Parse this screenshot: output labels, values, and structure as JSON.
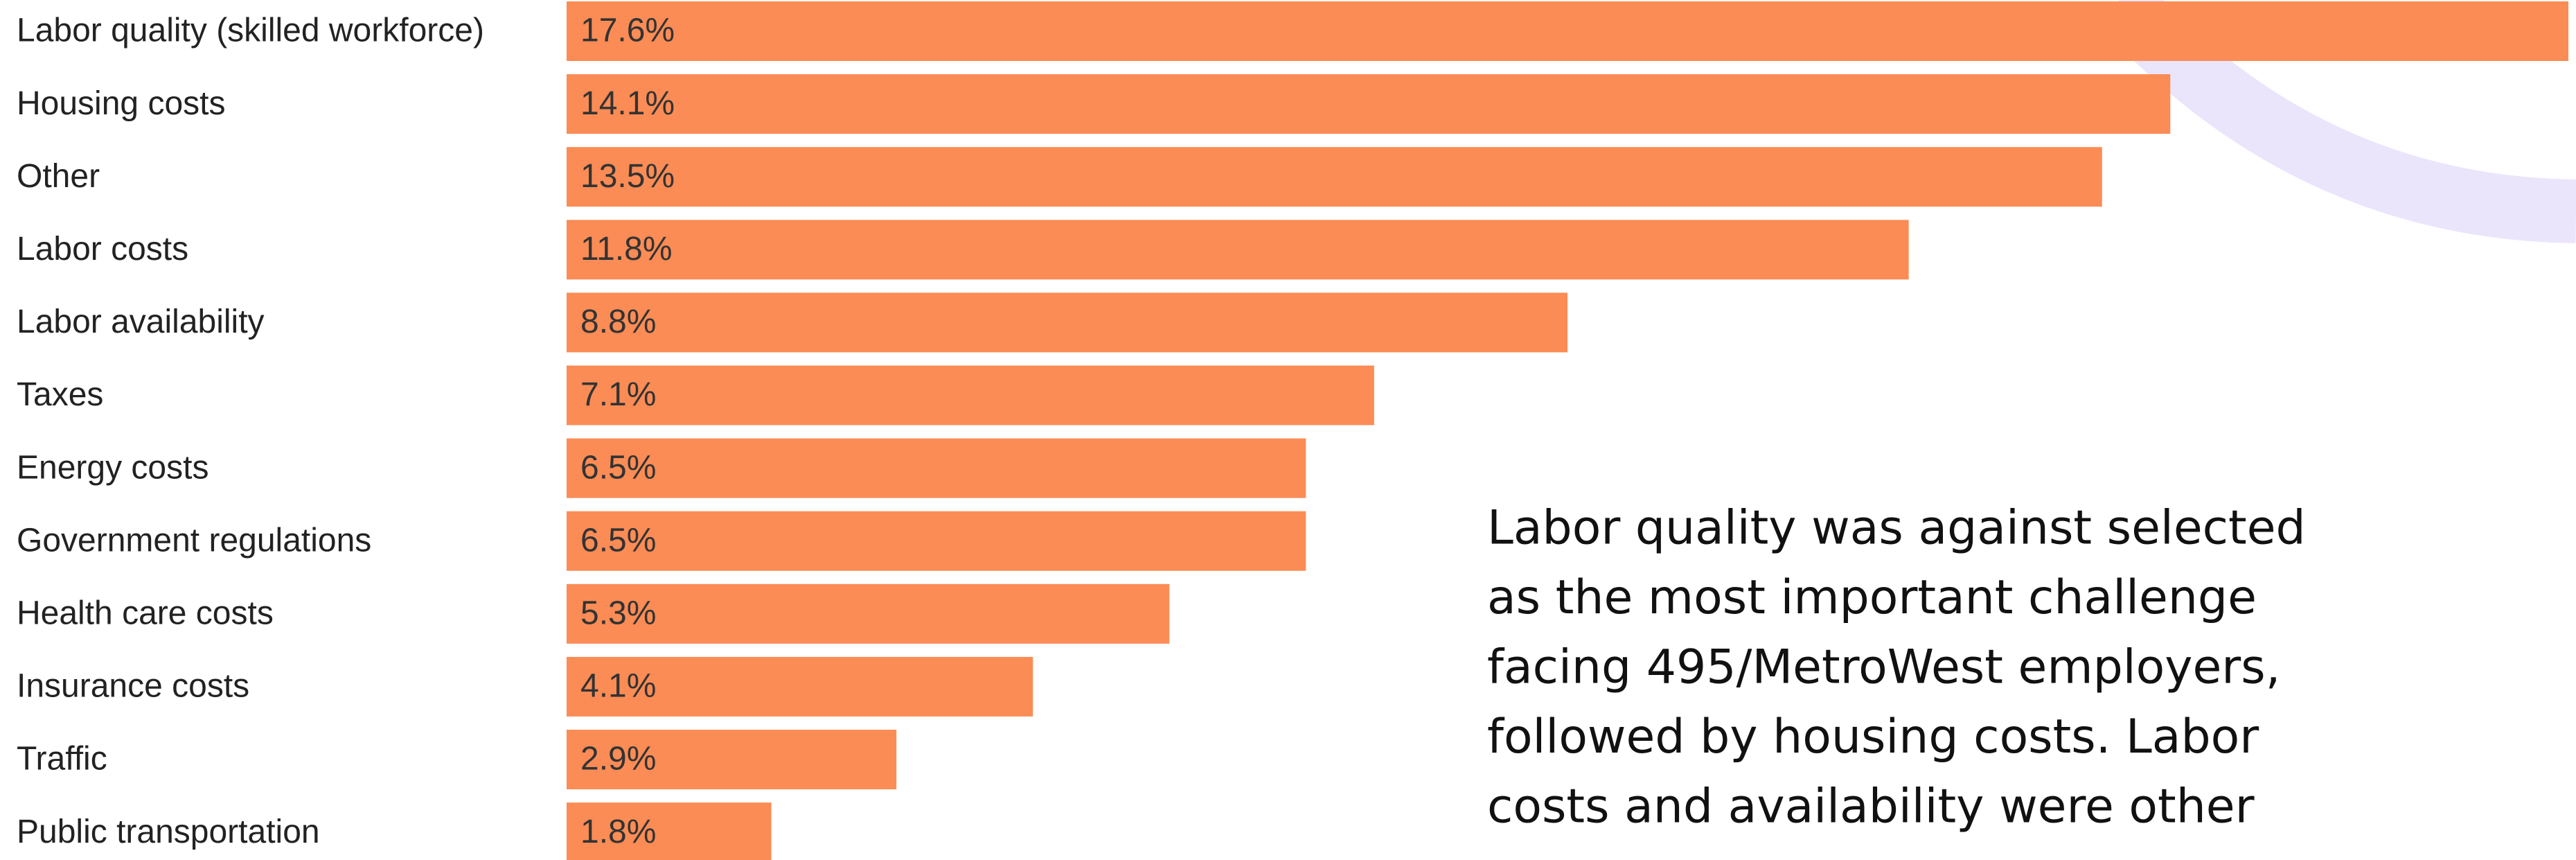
{
  "chart_data": {
    "type": "bar",
    "orientation": "horizontal",
    "categories": [
      "Labor quality (skilled workforce)",
      "Housing costs",
      "Other",
      "Labor costs",
      "Labor availability",
      "Taxes",
      "Energy costs",
      "Government regulations",
      "Health care costs",
      "Insurance costs",
      "Traffic",
      "Public transportation"
    ],
    "values": [
      17.6,
      14.1,
      13.5,
      11.8,
      8.8,
      7.1,
      6.5,
      6.5,
      5.3,
      4.1,
      2.9,
      1.8
    ],
    "value_labels": [
      "17.6%",
      "14.1%",
      "13.5%",
      "11.8%",
      "8.8%",
      "7.1%",
      "6.5%",
      "6.5%",
      "5.3%",
      "4.1%",
      "2.9%",
      "1.8%"
    ],
    "color": "#fb8c55",
    "annotation_lines": [
      "Labor quality was against selected",
      "as the most important challenge",
      "facing 495/MetroWest employers,",
      "followed by housing costs. Labor",
      "costs and availability were other"
    ]
  }
}
